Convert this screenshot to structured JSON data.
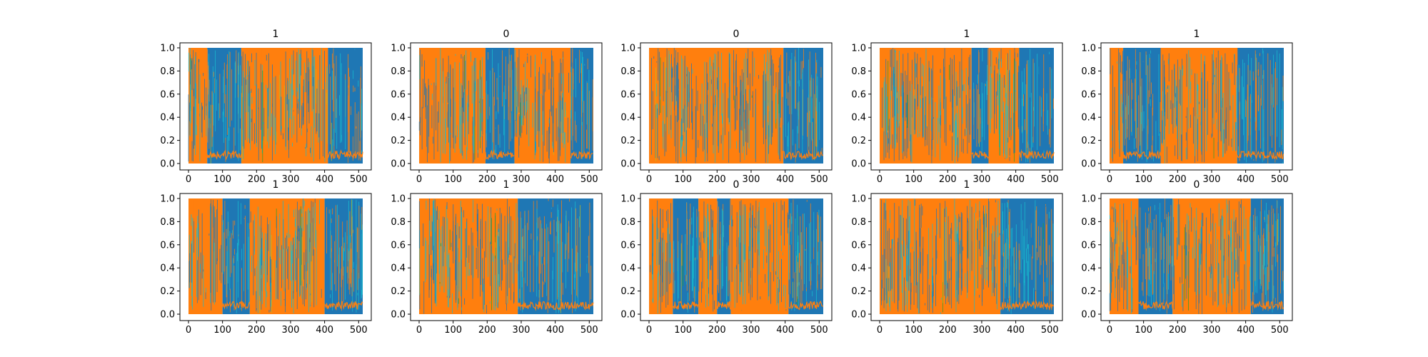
{
  "colors": {
    "series_blue": "#1f77b4",
    "series_orange": "#ff7f0e",
    "series_teal": "#17becf",
    "series_olive": "#bcbd22",
    "series_green": "#2ca02c",
    "series_purple": "#9467bd",
    "series_pink": "#e377c2",
    "axes": "#000000"
  },
  "chart_data": [
    {
      "type": "area",
      "title": "1",
      "xlim": [
        0,
        512
      ],
      "ylim": [
        0,
        1
      ],
      "xticks": [
        "0",
        "100",
        "200",
        "300",
        "400",
        "500"
      ],
      "yticks": [
        "0.0",
        "0.2",
        "0.4",
        "0.6",
        "0.8",
        "1.0"
      ],
      "series": [
        {
          "color_key": "series_orange",
          "color": "#ff7f0e",
          "active_x": [
            [
              0,
              55
            ],
            [
              155,
              410
            ]
          ]
        },
        {
          "color_key": "series_blue",
          "color": "#1f77b4",
          "active_x": [
            [
              55,
              155
            ],
            [
              410,
              512
            ]
          ]
        }
      ]
    },
    {
      "type": "area",
      "title": "0",
      "xlim": [
        0,
        512
      ],
      "ylim": [
        0,
        1
      ],
      "xticks": [
        "0",
        "100",
        "200",
        "300",
        "400",
        "500"
      ],
      "yticks": [
        "0.0",
        "0.2",
        "0.4",
        "0.6",
        "0.8",
        "1.0"
      ],
      "series": [
        {
          "color_key": "series_orange",
          "color": "#ff7f0e",
          "active_x": [
            [
              0,
              195
            ],
            [
              280,
              445
            ]
          ]
        },
        {
          "color_key": "series_blue",
          "color": "#1f77b4",
          "active_x": [
            [
              195,
              280
            ],
            [
              445,
              512
            ]
          ]
        }
      ]
    },
    {
      "type": "area",
      "title": "0",
      "xlim": [
        0,
        512
      ],
      "ylim": [
        0,
        1
      ],
      "xticks": [
        "0",
        "100",
        "200",
        "300",
        "400",
        "500"
      ],
      "yticks": [
        "0.0",
        "0.2",
        "0.4",
        "0.6",
        "0.8",
        "1.0"
      ],
      "series": [
        {
          "color_key": "series_orange",
          "color": "#ff7f0e",
          "active_x": [
            [
              0,
              395
            ]
          ]
        },
        {
          "color_key": "series_blue",
          "color": "#1f77b4",
          "active_x": [
            [
              395,
              512
            ]
          ]
        }
      ]
    },
    {
      "type": "area",
      "title": "1",
      "xlim": [
        0,
        512
      ],
      "ylim": [
        0,
        1
      ],
      "xticks": [
        "0",
        "100",
        "200",
        "300",
        "400",
        "500"
      ],
      "yticks": [
        "0.0",
        "0.2",
        "0.4",
        "0.6",
        "0.8",
        "1.0"
      ],
      "series": [
        {
          "color_key": "series_orange",
          "color": "#ff7f0e",
          "active_x": [
            [
              0,
              270
            ],
            [
              320,
              410
            ]
          ]
        },
        {
          "color_key": "series_blue",
          "color": "#1f77b4",
          "active_x": [
            [
              270,
              320
            ],
            [
              410,
              512
            ]
          ]
        }
      ]
    },
    {
      "type": "area",
      "title": "1",
      "xlim": [
        0,
        512
      ],
      "ylim": [
        0,
        1
      ],
      "xticks": [
        "0",
        "100",
        "200",
        "300",
        "400",
        "500"
      ],
      "yticks": [
        "0.0",
        "0.2",
        "0.4",
        "0.6",
        "0.8",
        "1.0"
      ],
      "series": [
        {
          "color_key": "series_orange",
          "color": "#ff7f0e",
          "active_x": [
            [
              0,
              40
            ],
            [
              150,
              375
            ]
          ]
        },
        {
          "color_key": "series_blue",
          "color": "#1f77b4",
          "active_x": [
            [
              40,
              150
            ],
            [
              375,
              512
            ]
          ]
        }
      ]
    },
    {
      "type": "area",
      "title": "1",
      "xlim": [
        0,
        512
      ],
      "ylim": [
        0,
        1
      ],
      "xticks": [
        "0",
        "100",
        "200",
        "300",
        "400",
        "500"
      ],
      "yticks": [
        "0.0",
        "0.2",
        "0.4",
        "0.6",
        "0.8",
        "1.0"
      ],
      "series": [
        {
          "color_key": "series_orange",
          "color": "#ff7f0e",
          "active_x": [
            [
              0,
              100
            ],
            [
              180,
              400
            ]
          ]
        },
        {
          "color_key": "series_blue",
          "color": "#1f77b4",
          "active_x": [
            [
              100,
              180
            ],
            [
              400,
              512
            ]
          ]
        }
      ]
    },
    {
      "type": "area",
      "title": "1",
      "xlim": [
        0,
        512
      ],
      "ylim": [
        0,
        1
      ],
      "xticks": [
        "0",
        "100",
        "200",
        "300",
        "400",
        "500"
      ],
      "yticks": [
        "0.0",
        "0.2",
        "0.4",
        "0.6",
        "0.8",
        "1.0"
      ],
      "series": [
        {
          "color_key": "series_orange",
          "color": "#ff7f0e",
          "active_x": [
            [
              0,
              290
            ]
          ]
        },
        {
          "color_key": "series_blue",
          "color": "#1f77b4",
          "active_x": [
            [
              290,
              512
            ]
          ]
        }
      ]
    },
    {
      "type": "area",
      "title": "0",
      "xlim": [
        0,
        512
      ],
      "ylim": [
        0,
        1
      ],
      "xticks": [
        "0",
        "100",
        "200",
        "300",
        "400",
        "500"
      ],
      "yticks": [
        "0.0",
        "0.2",
        "0.4",
        "0.6",
        "0.8",
        "1.0"
      ],
      "series": [
        {
          "color_key": "series_orange",
          "color": "#ff7f0e",
          "active_x": [
            [
              0,
              70
            ],
            [
              145,
              200
            ],
            [
              240,
              410
            ]
          ]
        },
        {
          "color_key": "series_blue",
          "color": "#1f77b4",
          "active_x": [
            [
              70,
              145
            ],
            [
              200,
              240
            ],
            [
              410,
              512
            ]
          ]
        }
      ]
    },
    {
      "type": "area",
      "title": "1",
      "xlim": [
        0,
        512
      ],
      "ylim": [
        0,
        1
      ],
      "xticks": [
        "0",
        "100",
        "200",
        "300",
        "400",
        "500"
      ],
      "yticks": [
        "0.0",
        "0.2",
        "0.4",
        "0.6",
        "0.8",
        "1.0"
      ],
      "series": [
        {
          "color_key": "series_orange",
          "color": "#ff7f0e",
          "active_x": [
            [
              0,
              355
            ]
          ]
        },
        {
          "color_key": "series_blue",
          "color": "#1f77b4",
          "active_x": [
            [
              355,
              512
            ]
          ]
        }
      ]
    },
    {
      "type": "area",
      "title": "0",
      "xlim": [
        0,
        512
      ],
      "ylim": [
        0,
        1
      ],
      "xticks": [
        "0",
        "100",
        "200",
        "300",
        "400",
        "500"
      ],
      "yticks": [
        "0.0",
        "0.2",
        "0.4",
        "0.6",
        "0.8",
        "1.0"
      ],
      "series": [
        {
          "color_key": "series_orange",
          "color": "#ff7f0e",
          "active_x": [
            [
              0,
              85
            ],
            [
              185,
              415
            ]
          ]
        },
        {
          "color_key": "series_blue",
          "color": "#1f77b4",
          "active_x": [
            [
              85,
              185
            ],
            [
              415,
              512
            ]
          ]
        }
      ]
    }
  ]
}
